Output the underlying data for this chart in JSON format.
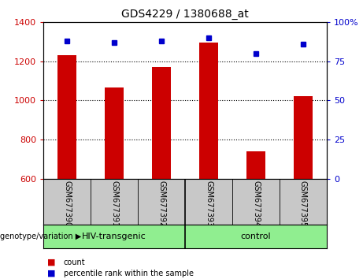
{
  "title": "GDS4229 / 1380688_at",
  "samples": [
    "GSM677390",
    "GSM677391",
    "GSM677392",
    "GSM677393",
    "GSM677394",
    "GSM677395"
  ],
  "counts": [
    1230,
    1065,
    1170,
    1295,
    740,
    1020
  ],
  "percentiles": [
    88,
    87,
    88,
    90,
    80,
    86
  ],
  "bar_color": "#cc0000",
  "dot_color": "#0000cc",
  "ylim_left": [
    600,
    1400
  ],
  "ylim_right": [
    0,
    100
  ],
  "yticks_left": [
    600,
    800,
    1000,
    1200,
    1400
  ],
  "yticks_right": [
    0,
    25,
    50,
    75,
    100
  ],
  "group1_label": "HIV-transgenic",
  "group1_indices": [
    0,
    1,
    2
  ],
  "group2_label": "control",
  "group2_indices": [
    3,
    4,
    5
  ],
  "group_color": "#90ee90",
  "group_label_prefix": "genotype/variation",
  "legend_count_label": "count",
  "legend_percentile_label": "percentile rank within the sample",
  "plot_bg": "#ffffff",
  "label_color_left": "#cc0000",
  "label_color_right": "#0000cc",
  "tick_label_bg": "#c8c8c8",
  "bar_width": 0.4,
  "title_fontsize": 10,
  "axis_fontsize": 8,
  "sample_fontsize": 7,
  "group_fontsize": 8
}
